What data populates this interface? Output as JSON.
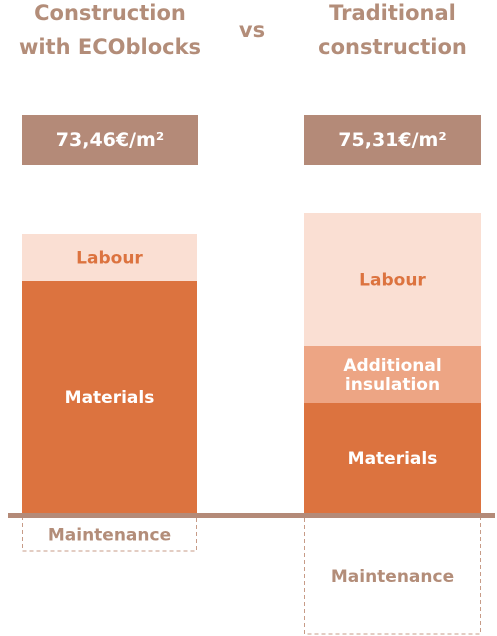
{
  "header": {
    "left_title": "Construction\nwith ECOblocks",
    "vs": "vs",
    "right_title": "Traditional\nconstruction"
  },
  "prices": {
    "left": "73,46€/m²",
    "right": "75,31€/m²"
  },
  "colors": {
    "labour": "#fadfd3",
    "materials": "#dc733f",
    "additional_insulation": "#eda584",
    "maintenance_border": "#c79b87",
    "baseline": "#b48a78",
    "header_text": "#b38d79",
    "price_box": "#b48a78",
    "label_orange": "#dc733f",
    "label_white": "#ffffff",
    "label_brown": "#b38d79"
  },
  "chart_data": {
    "type": "bar",
    "stacked": true,
    "baseline_note": "Maintenance shown below the baseline",
    "categories": [
      "Construction with ECOblocks",
      "Traditional construction"
    ],
    "bars": [
      {
        "category": "Construction with ECOblocks",
        "segments": [
          {
            "key": "materials",
            "label": "Materials",
            "value": 232,
            "label_color": "#ffffff"
          },
          {
            "key": "labour",
            "label": "Labour",
            "value": 47,
            "label_color": "#dc733f"
          }
        ],
        "below": [
          {
            "key": "maintenance",
            "label": "Maintenance",
            "value": 35,
            "label_color": "#b38d79"
          }
        ]
      },
      {
        "category": "Traditional construction",
        "segments": [
          {
            "key": "materials",
            "label": "Materials",
            "value": 110,
            "label_color": "#ffffff"
          },
          {
            "key": "additional_insulation",
            "label": "Additional\ninsulation",
            "value": 57,
            "label_color": "#ffffff"
          },
          {
            "key": "labour",
            "label": "Labour",
            "value": 133,
            "label_color": "#dc733f"
          }
        ],
        "below": [
          {
            "key": "maintenance",
            "label": "Maintenance",
            "value": 118,
            "label_color": "#b38d79"
          }
        ]
      }
    ]
  }
}
